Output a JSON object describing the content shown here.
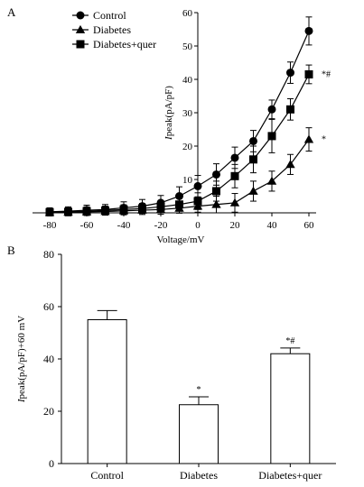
{
  "panels": {
    "a_label": "A",
    "b_label": "B"
  },
  "chart_data": [
    {
      "panel": "A",
      "type": "line",
      "xlabel": "Voltage/mV",
      "ylabel": "Ipeak(pA/pF)",
      "ylabel_italic": "I",
      "ylabel_rest": "peak(pA/pF)",
      "xlim": [
        -80,
        60
      ],
      "ylim": [
        0,
        60
      ],
      "x_ticks": [
        -80,
        -60,
        -40,
        -20,
        0,
        20,
        40,
        60
      ],
      "y_ticks": [
        0,
        10,
        20,
        30,
        40,
        50,
        60
      ],
      "x": [
        -80,
        -70,
        -60,
        -50,
        -40,
        -30,
        -20,
        -10,
        0,
        10,
        20,
        30,
        40,
        50,
        60
      ],
      "legend_position": "top-left",
      "series": [
        {
          "name": "Control",
          "marker": "circle",
          "values": [
            0.3,
            0.5,
            0.8,
            1.0,
            1.5,
            2.0,
            3.0,
            5.0,
            8.0,
            11.5,
            16.5,
            21.5,
            31.0,
            42.0,
            54.5
          ],
          "errors": [
            1.2,
            1.3,
            1.5,
            1.5,
            1.8,
            2.0,
            2.2,
            2.8,
            3.2,
            3.2,
            3.2,
            3.2,
            2.8,
            3.2,
            4.2
          ]
        },
        {
          "name": "Diabetes",
          "marker": "triangle",
          "values": [
            0.1,
            0.2,
            0.3,
            0.4,
            0.6,
            0.8,
            1.0,
            1.4,
            2.0,
            2.5,
            3.0,
            6.5,
            9.5,
            14.5,
            22.0
          ],
          "errors": [
            1.0,
            1.0,
            1.1,
            1.1,
            1.2,
            1.3,
            1.4,
            1.5,
            1.8,
            2.5,
            2.8,
            3.0,
            3.0,
            3.0,
            3.5
          ]
        },
        {
          "name": "Diabetes+quer",
          "marker": "square",
          "values": [
            0.2,
            0.3,
            0.5,
            0.7,
            1.0,
            1.3,
            1.8,
            2.5,
            3.5,
            6.5,
            11.0,
            16.0,
            23.0,
            31.0,
            41.5
          ],
          "errors": [
            1.1,
            1.2,
            1.3,
            1.3,
            1.4,
            1.5,
            1.6,
            2.0,
            2.5,
            3.0,
            3.5,
            4.0,
            5.0,
            3.2,
            2.8
          ]
        }
      ],
      "annotations": [
        {
          "series": "Diabetes+quer",
          "x": 60,
          "text": "*#"
        },
        {
          "series": "Diabetes",
          "x": 60,
          "text": "*"
        }
      ]
    },
    {
      "panel": "B",
      "type": "bar",
      "ylabel": "Ipeak(pA/pF)+60 mV",
      "ylabel_italic": "I",
      "ylabel_rest": "peak(pA/pF)+60 mV",
      "ylim": [
        0,
        80
      ],
      "y_ticks": [
        0,
        20,
        40,
        60,
        80
      ],
      "categories": [
        "Control",
        "Diabetes",
        "Diabetes+quer"
      ],
      "values": [
        55,
        22.5,
        42
      ],
      "errors": [
        3.5,
        3.0,
        2.2
      ],
      "bar_annotations": [
        "",
        "*",
        "*#"
      ]
    }
  ]
}
